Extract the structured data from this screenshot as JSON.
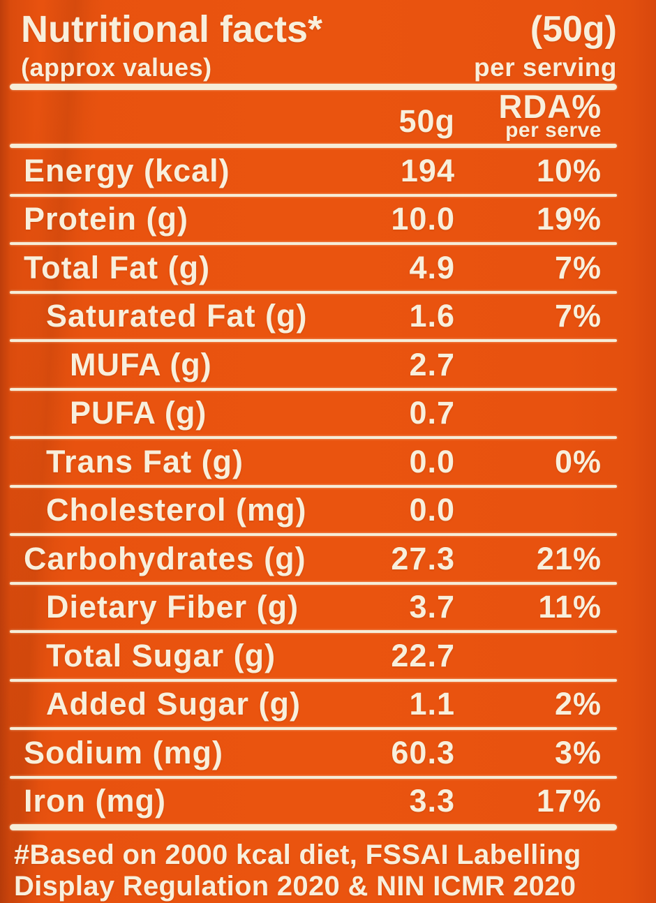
{
  "header": {
    "title": "Nutritional facts*",
    "serving_size": "(50g)",
    "subtitle": "(approx values)",
    "serving_note": "per serving"
  },
  "columns": {
    "amount": "50g",
    "rda_line1": "RDA%",
    "rda_line2": "per serve"
  },
  "rows": [
    {
      "label": "Energy (kcal)",
      "amount": "194",
      "rda": "10%",
      "indent": 0
    },
    {
      "label": "Protein (g)",
      "amount": "10.0",
      "rda": "19%",
      "indent": 0
    },
    {
      "label": "Total Fat (g)",
      "amount": "4.9",
      "rda": "7%",
      "indent": 0
    },
    {
      "label": "Saturated Fat (g)",
      "amount": "1.6",
      "rda": "7%",
      "indent": 1
    },
    {
      "label": "MUFA (g)",
      "amount": "2.7",
      "rda": "",
      "indent": 2
    },
    {
      "label": "PUFA (g)",
      "amount": "0.7",
      "rda": "",
      "indent": 2
    },
    {
      "label": "Trans Fat (g)",
      "amount": "0.0",
      "rda": "0%",
      "indent": 1
    },
    {
      "label": "Cholesterol (mg)",
      "amount": "0.0",
      "rda": "",
      "indent": 1
    },
    {
      "label": "Carbohydrates (g)",
      "amount": "27.3",
      "rda": "21%",
      "indent": 0
    },
    {
      "label": "Dietary Fiber (g)",
      "amount": "3.7",
      "rda": "11%",
      "indent": 1
    },
    {
      "label": "Total Sugar (g)",
      "amount": "22.7",
      "rda": "",
      "indent": 1
    },
    {
      "label": "Added Sugar (g)",
      "amount": "1.1",
      "rda": "2%",
      "indent": 1
    },
    {
      "label": "Sodium (mg)",
      "amount": "60.3",
      "rda": "3%",
      "indent": 0
    },
    {
      "label": "Iron (mg)",
      "amount": "3.3",
      "rda": "17%",
      "indent": 0
    }
  ],
  "footer": {
    "line1": "#Based on 2000 kcal diet, FSSAI Labelling",
    "line2": "Display Regulation 2020 & NIN ICMR 2020"
  },
  "colors": {
    "background": "#E8520F",
    "text": "#F8EFDC",
    "rule": "#F6EDD8"
  }
}
